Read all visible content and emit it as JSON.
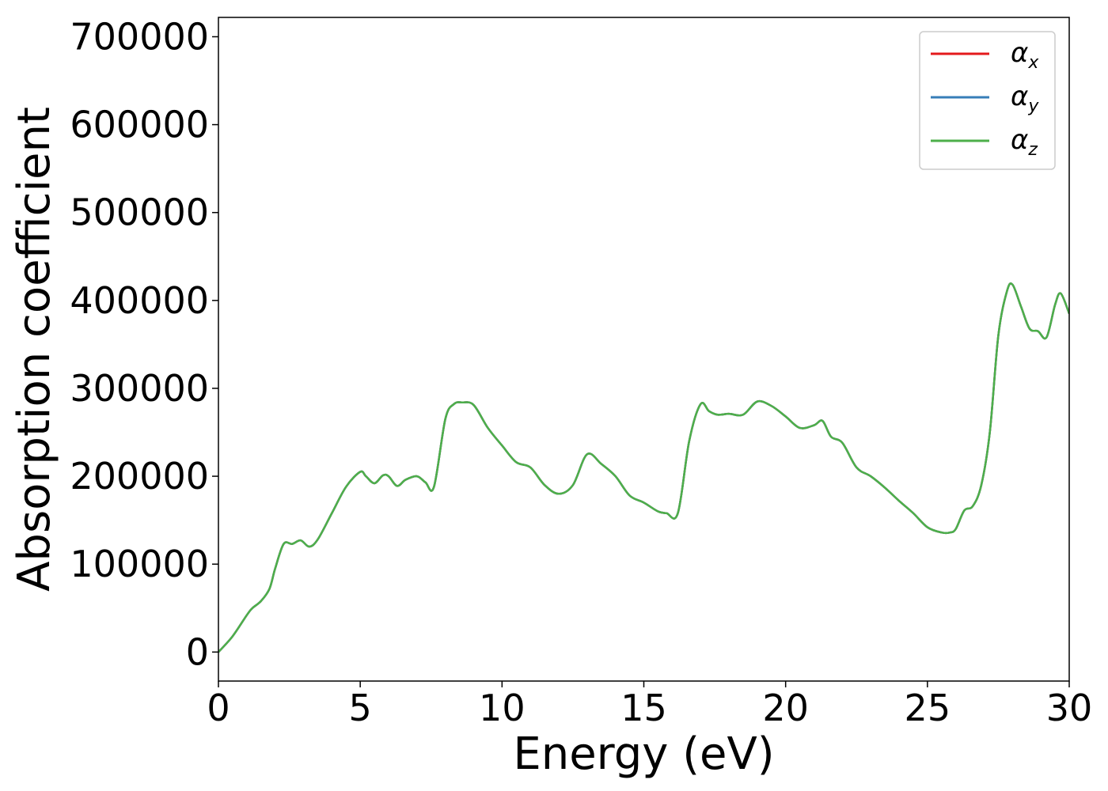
{
  "chart_data": {
    "type": "line",
    "title": "",
    "xlabel": "Energy (eV)",
    "ylabel": "Absorption coefficient",
    "xlim": [
      0,
      30
    ],
    "ylim": [
      -33000,
      722000
    ],
    "xticks": [
      0,
      5,
      10,
      15,
      20,
      25,
      30
    ],
    "xtick_labels": [
      "0",
      "5",
      "10",
      "15",
      "20",
      "25",
      "30"
    ],
    "yticks": [
      0,
      100000,
      200000,
      300000,
      400000,
      500000,
      600000,
      700000
    ],
    "ytick_labels": [
      "0",
      "100000",
      "200000",
      "300000",
      "400000",
      "500000",
      "600000",
      "700000"
    ],
    "grid": false,
    "legend_position": "top-right",
    "x": [
      0,
      0.5,
      1.0,
      1.2,
      1.5,
      1.8,
      2.0,
      2.3,
      2.6,
      2.9,
      3.2,
      3.5,
      4.0,
      4.5,
      5.0,
      5.2,
      5.5,
      5.8,
      6.0,
      6.3,
      6.6,
      7.0,
      7.3,
      7.6,
      8.0,
      8.3,
      8.6,
      9.0,
      9.5,
      10.0,
      10.5,
      11.0,
      11.5,
      12.0,
      12.5,
      13.0,
      13.5,
      14.0,
      14.5,
      15.0,
      15.5,
      15.8,
      16.2,
      16.6,
      17.0,
      17.3,
      17.6,
      18.0,
      18.5,
      19.0,
      19.5,
      20.0,
      20.5,
      21.0,
      21.3,
      21.6,
      22.0,
      22.5,
      23.0,
      23.5,
      24.0,
      24.5,
      25.0,
      25.5,
      25.8,
      26.0,
      26.3,
      26.6,
      26.9,
      27.2,
      27.5,
      27.8,
      28.0,
      28.3,
      28.6,
      28.9,
      29.2,
      29.5,
      29.7,
      30.0
    ],
    "series": [
      {
        "name": "α_x",
        "name_main": "α",
        "name_sub": "x",
        "color": "#e41a1c",
        "values": [
          0,
          18000,
          42000,
          50000,
          58000,
          72000,
          95000,
          123000,
          123000,
          127000,
          120000,
          128000,
          158000,
          188000,
          205000,
          200000,
          192000,
          201000,
          200000,
          189000,
          196000,
          200000,
          193000,
          188000,
          265000,
          282000,
          284000,
          281000,
          255000,
          235000,
          216000,
          210000,
          190000,
          180000,
          190000,
          225000,
          214000,
          200000,
          178000,
          170000,
          160000,
          158000,
          158000,
          240000,
          282000,
          274000,
          270000,
          271000,
          270000,
          285000,
          280000,
          268000,
          255000,
          258000,
          263000,
          245000,
          238000,
          210000,
          200000,
          187000,
          172000,
          158000,
          142000,
          136000,
          136000,
          140000,
          161000,
          166000,
          190000,
          250000,
          360000,
          410000,
          418000,
          393000,
          368000,
          365000,
          358000,
          395000,
          408000,
          385000
        ]
      },
      {
        "name": "α_y",
        "name_main": "α",
        "name_sub": "y",
        "color": "#377eb8",
        "values": [
          0,
          18000,
          42000,
          50000,
          58000,
          72000,
          95000,
          123000,
          123000,
          127000,
          120000,
          128000,
          158000,
          188000,
          205000,
          200000,
          192000,
          201000,
          200000,
          189000,
          196000,
          200000,
          193000,
          188000,
          265000,
          282000,
          284000,
          281000,
          255000,
          235000,
          216000,
          210000,
          190000,
          180000,
          190000,
          225000,
          214000,
          200000,
          178000,
          170000,
          160000,
          158000,
          158000,
          240000,
          282000,
          274000,
          270000,
          271000,
          270000,
          285000,
          280000,
          268000,
          255000,
          258000,
          263000,
          245000,
          238000,
          210000,
          200000,
          187000,
          172000,
          158000,
          142000,
          136000,
          136000,
          140000,
          161000,
          166000,
          190000,
          250000,
          360000,
          410000,
          418000,
          393000,
          368000,
          365000,
          358000,
          395000,
          408000,
          385000
        ]
      },
      {
        "name": "α_z",
        "name_main": "α",
        "name_sub": "z",
        "color": "#4daf4a",
        "values": [
          0,
          18000,
          42000,
          50000,
          58000,
          72000,
          95000,
          123000,
          123000,
          127000,
          120000,
          128000,
          158000,
          188000,
          205000,
          200000,
          192000,
          201000,
          200000,
          189000,
          196000,
          200000,
          193000,
          188000,
          265000,
          282000,
          284000,
          281000,
          255000,
          235000,
          216000,
          210000,
          190000,
          180000,
          190000,
          225000,
          214000,
          200000,
          178000,
          170000,
          160000,
          158000,
          158000,
          240000,
          282000,
          274000,
          270000,
          271000,
          270000,
          285000,
          280000,
          268000,
          255000,
          258000,
          263000,
          245000,
          238000,
          210000,
          200000,
          187000,
          172000,
          158000,
          142000,
          136000,
          136000,
          140000,
          161000,
          166000,
          190000,
          250000,
          360000,
          410000,
          418000,
          393000,
          368000,
          365000,
          358000,
          395000,
          408000,
          385000
        ]
      }
    ]
  }
}
